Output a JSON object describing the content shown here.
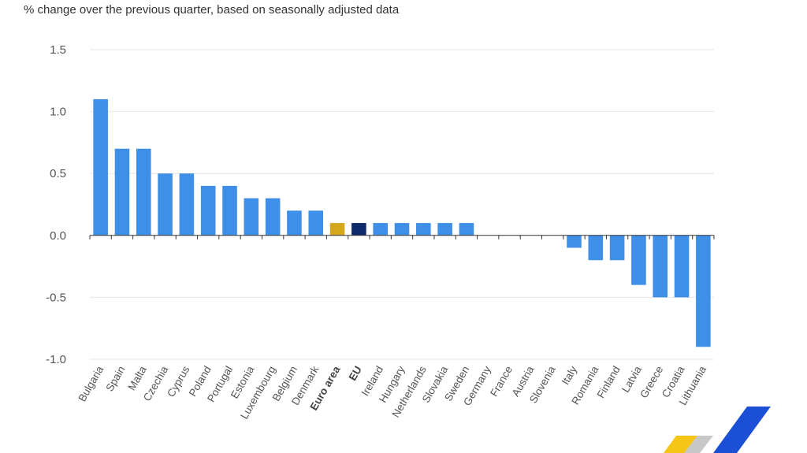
{
  "chart_data": {
    "type": "bar",
    "title": "",
    "subtitle": "% change over the previous quarter, based on seasonally adjusted data",
    "xlabel": "",
    "ylabel": "",
    "ylim": [
      -1.0,
      1.5
    ],
    "yticks": [
      1.5,
      1.0,
      0.5,
      0.0,
      -0.5,
      -1.0
    ],
    "ytick_labels": [
      "1.5",
      "1.0",
      "0.5",
      "0.0",
      "-0.5",
      "-1.0"
    ],
    "grid": true,
    "categories": [
      "Bulgaria",
      "Spain",
      "Malta",
      "Czechia",
      "Cyprus",
      "Poland",
      "Portugal",
      "Estonia",
      "Luxembourg",
      "Belgium",
      "Denmark",
      "Euro area",
      "EU",
      "Ireland",
      "Hungary",
      "Netherlands",
      "Slovakia",
      "Sweden",
      "Germany",
      "France",
      "Austria",
      "Slovenia",
      "Italy",
      "Romania",
      "Finland",
      "Latvia",
      "Greece",
      "Croatia",
      "Lithuania"
    ],
    "values": [
      1.1,
      0.7,
      0.7,
      0.5,
      0.5,
      0.4,
      0.4,
      0.3,
      0.3,
      0.2,
      0.2,
      0.1,
      0.1,
      0.1,
      0.1,
      0.1,
      0.1,
      0.1,
      0.0,
      0.0,
      0.0,
      0.0,
      -0.1,
      -0.2,
      -0.2,
      -0.4,
      -0.5,
      -0.5,
      -0.9
    ],
    "bold_categories": [
      "Euro area",
      "EU"
    ],
    "colors": {
      "default": "#3f8fe6",
      "Euro area": "#d4a71c",
      "EU": "#0e2a6b"
    }
  },
  "logo": {
    "colors": [
      "#f5c518",
      "#1a4fd6",
      "#c8c8c8"
    ]
  }
}
